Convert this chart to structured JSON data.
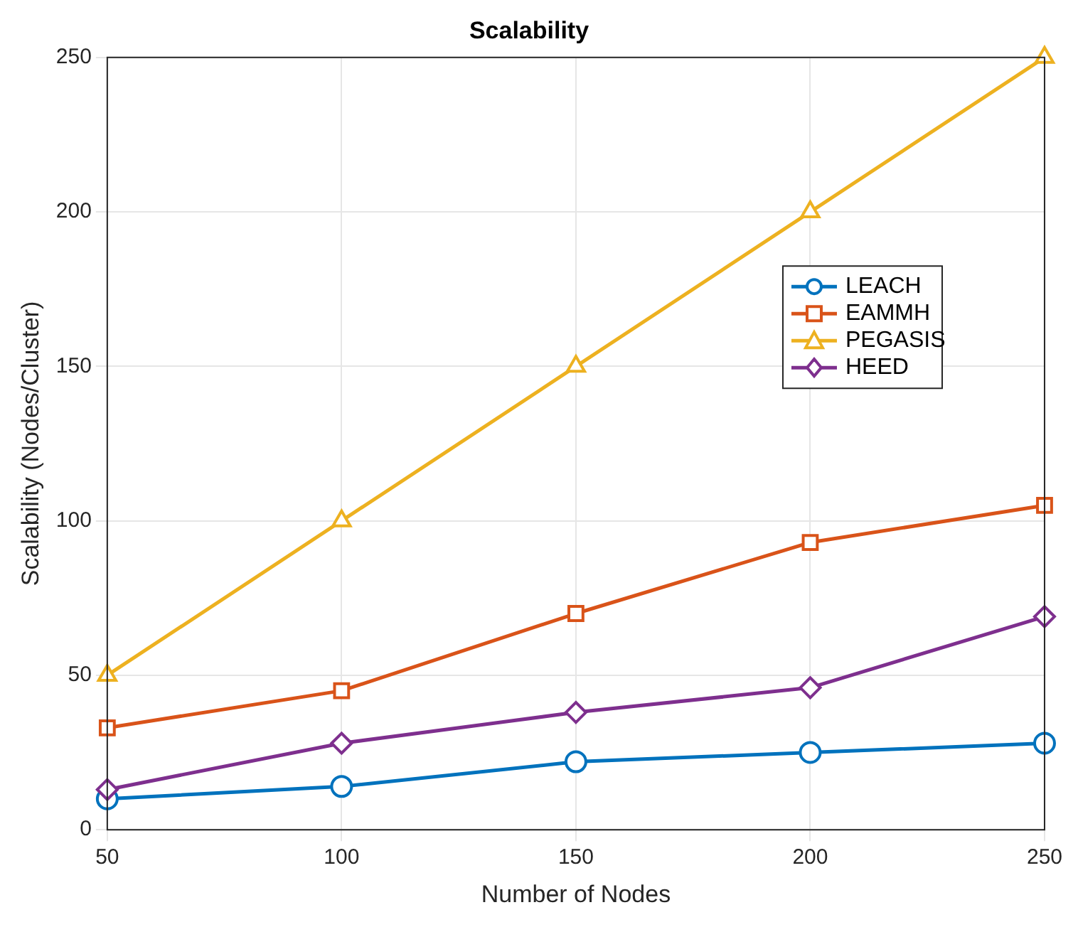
{
  "chart_data": {
    "type": "line",
    "title": "Scalability",
    "xlabel": "Number of Nodes",
    "ylabel": "Scalability (Nodes/Cluster)",
    "x": [
      50,
      100,
      150,
      200,
      250
    ],
    "xlim": [
      50,
      250
    ],
    "xticks": [
      50,
      100,
      150,
      200,
      250
    ],
    "ylim": [
      0,
      250
    ],
    "yticks": [
      0,
      50,
      100,
      150,
      200,
      250
    ],
    "grid": true,
    "legend": "right",
    "line_style": "solid",
    "series": [
      {
        "name": "LEACH",
        "color": "#0072bd",
        "marker": "circle",
        "values": [
          10,
          14,
          22,
          25,
          28
        ]
      },
      {
        "name": "EAMMH",
        "color": "#d95319",
        "marker": "square",
        "values": [
          33,
          45,
          70,
          93,
          105
        ]
      },
      {
        "name": "PEGASIS",
        "color": "#edb120",
        "marker": "triangle",
        "values": [
          50,
          100,
          150,
          200,
          250
        ]
      },
      {
        "name": "HEED",
        "color": "#7e2f8e",
        "marker": "diamond",
        "values": [
          13,
          28,
          38,
          46,
          69
        ]
      }
    ]
  }
}
